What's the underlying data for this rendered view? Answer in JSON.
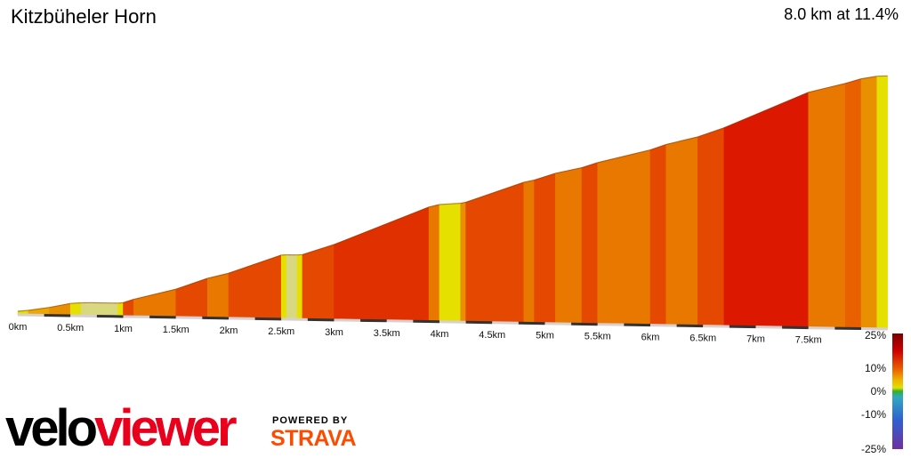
{
  "title": "Kitzbüheler Horn",
  "stats": "8.0 km at 11.4%",
  "brand": {
    "velo": "velo",
    "viewer": "viewer",
    "powered_by": "POWERED BY",
    "strava": "STRAVA",
    "velo_color": "#000000",
    "viewer_color": "#e8001c",
    "strava_color": "#fc4c02"
  },
  "legend": {
    "labels": [
      "25%",
      "10%",
      "0%",
      "-10%",
      "-25%"
    ],
    "values": [
      25,
      10,
      0,
      -10,
      -25
    ]
  },
  "chart_data": {
    "type": "area",
    "title": "Kitzbüheler Horn",
    "xlabel": "",
    "ylabel": "",
    "x_unit": "km",
    "x_ticks": [
      "0km",
      "0.5km",
      "1km",
      "1.5km",
      "2km",
      "2.5km",
      "3km",
      "3.5km",
      "4km",
      "4.5km",
      "5km",
      "5.5km",
      "6km",
      "6.5km",
      "7km",
      "7.5km"
    ],
    "x_tick_values": [
      0,
      0.5,
      1,
      1.5,
      2,
      2.5,
      3,
      3.5,
      4,
      4.5,
      5,
      5.5,
      6,
      6.5,
      7,
      7.5
    ],
    "xlim": [
      0,
      8.0
    ],
    "gradient_scale_percent": [
      -25,
      25
    ],
    "distance_km": [
      0.0,
      0.1,
      0.3,
      0.5,
      0.6,
      0.7,
      1.0,
      1.1,
      1.5,
      1.8,
      2.0,
      2.5,
      2.6,
      2.7,
      3.0,
      3.2,
      4.0,
      4.1,
      4.3,
      4.5,
      4.7,
      4.8,
      5.0,
      5.3,
      5.4,
      5.6,
      6.0,
      6.2,
      6.5,
      7.5,
      7.8,
      8.0
    ],
    "grade_percent": [
      4,
      6,
      8,
      3,
      1,
      7,
      13,
      10,
      15,
      10,
      14,
      3,
      0,
      12,
      16,
      12,
      3,
      10,
      14,
      6,
      12,
      8,
      13,
      9,
      14,
      10,
      13,
      17,
      10,
      12,
      9,
      4
    ],
    "segments": [
      {
        "start_km": 0.0,
        "end_km": 0.1,
        "grade": 4
      },
      {
        "start_km": 0.1,
        "end_km": 0.3,
        "grade": 6
      },
      {
        "start_km": 0.3,
        "end_km": 0.5,
        "grade": 8
      },
      {
        "start_km": 0.5,
        "end_km": 0.6,
        "grade": 3
      },
      {
        "start_km": 0.6,
        "end_km": 0.7,
        "grade": 1
      },
      {
        "start_km": 0.7,
        "end_km": 0.95,
        "grade": 0
      },
      {
        "start_km": 0.95,
        "end_km": 1.0,
        "grade": 4
      },
      {
        "start_km": 1.0,
        "end_km": 1.1,
        "grade": 13
      },
      {
        "start_km": 1.1,
        "end_km": 1.5,
        "grade": 10
      },
      {
        "start_km": 1.5,
        "end_km": 1.8,
        "grade": 14
      },
      {
        "start_km": 1.8,
        "end_km": 2.0,
        "grade": 10
      },
      {
        "start_km": 2.0,
        "end_km": 2.5,
        "grade": 14
      },
      {
        "start_km": 2.5,
        "end_km": 2.55,
        "grade": 3
      },
      {
        "start_km": 2.55,
        "end_km": 2.65,
        "grade": 0
      },
      {
        "start_km": 2.65,
        "end_km": 2.7,
        "grade": 3
      },
      {
        "start_km": 2.7,
        "end_km": 3.0,
        "grade": 13
      },
      {
        "start_km": 3.0,
        "end_km": 3.9,
        "grade": 16
      },
      {
        "start_km": 3.9,
        "end_km": 4.0,
        "grade": 10
      },
      {
        "start_km": 4.0,
        "end_km": 4.2,
        "grade": 3
      },
      {
        "start_km": 4.2,
        "end_km": 4.25,
        "grade": 8
      },
      {
        "start_km": 4.25,
        "end_km": 4.8,
        "grade": 14
      },
      {
        "start_km": 4.8,
        "end_km": 4.9,
        "grade": 9
      },
      {
        "start_km": 4.9,
        "end_km": 5.1,
        "grade": 13
      },
      {
        "start_km": 5.1,
        "end_km": 5.35,
        "grade": 9
      },
      {
        "start_km": 5.35,
        "end_km": 5.5,
        "grade": 13
      },
      {
        "start_km": 5.5,
        "end_km": 6.0,
        "grade": 10
      },
      {
        "start_km": 6.0,
        "end_km": 6.15,
        "grade": 14
      },
      {
        "start_km": 6.15,
        "end_km": 6.45,
        "grade": 10
      },
      {
        "start_km": 6.45,
        "end_km": 6.7,
        "grade": 14
      },
      {
        "start_km": 6.7,
        "end_km": 7.5,
        "grade": 17
      },
      {
        "start_km": 7.5,
        "end_km": 7.85,
        "grade": 10
      },
      {
        "start_km": 7.85,
        "end_km": 8.0,
        "grade": 12
      },
      {
        "start_km": 8.0,
        "end_km": 8.15,
        "grade": 7
      },
      {
        "start_km": 8.15,
        "end_km": 8.25,
        "grade": 2
      }
    ]
  }
}
